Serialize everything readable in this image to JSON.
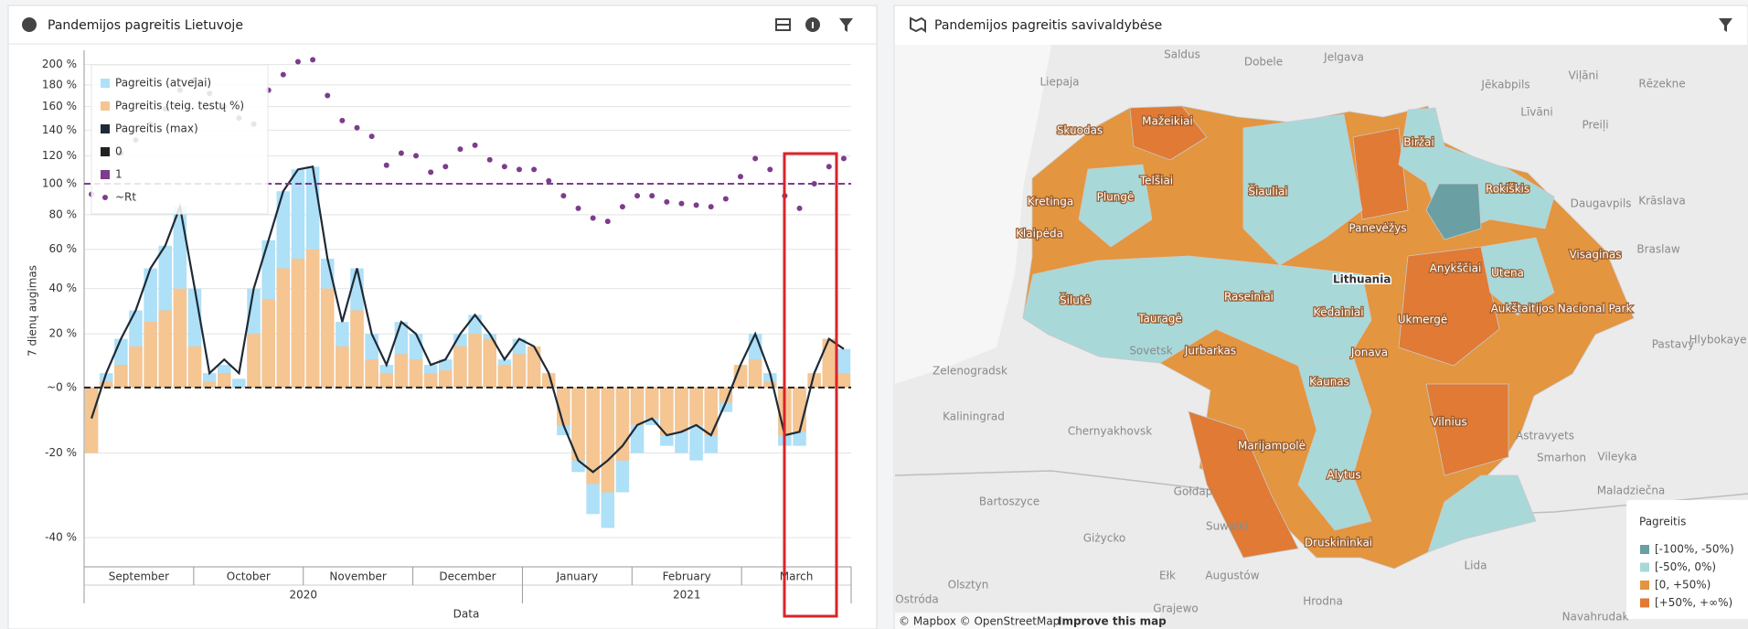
{
  "chart_data": {
    "type": "combo",
    "title": "Pandemijos pagreitis Lietuvoje",
    "y_label": "7 dienų augimas",
    "x_label": "Data",
    "months": [
      "September",
      "October",
      "November",
      "December",
      "January",
      "February",
      "March"
    ],
    "years": [
      "2020",
      "2021"
    ],
    "ylim": [
      -45,
      215
    ],
    "yscale": "log(1+x)",
    "grid": true,
    "yticks": [
      {
        "value": 200,
        "label": "200 %"
      },
      {
        "value": 180,
        "label": "180 %"
      },
      {
        "value": 160,
        "label": "160 %"
      },
      {
        "value": 140,
        "label": "140 %"
      },
      {
        "value": 120,
        "label": "120 %"
      },
      {
        "value": 100,
        "label": "100 %"
      },
      {
        "value": 80,
        "label": "80 %"
      },
      {
        "value": 60,
        "label": "60 %"
      },
      {
        "value": 40,
        "label": "40 %"
      },
      {
        "value": 20,
        "label": "20 %"
      },
      {
        "value": 0,
        "label": "~0 %"
      },
      {
        "value": -20,
        "label": "-20 %"
      },
      {
        "value": -40,
        "label": "-40 %"
      }
    ],
    "legend": "top-left",
    "series": [
      {
        "name": "Pagreitis (atvejai)",
        "type": "bar",
        "color": "#aee0f7",
        "values": [
          -10,
          5,
          18,
          30,
          50,
          62,
          85,
          40,
          5,
          8,
          3,
          40,
          65,
          95,
          110,
          112,
          55,
          25,
          50,
          20,
          8,
          25,
          20,
          8,
          10,
          20,
          28,
          20,
          10,
          18,
          12,
          3,
          -15,
          -25,
          -35,
          -38,
          -30,
          -20,
          -12,
          -18,
          -20,
          -22,
          -20,
          -8,
          5,
          20,
          5,
          -18,
          -18,
          3,
          15,
          14
        ]
      },
      {
        "name": "Pagreitis (teig. testų %)",
        "type": "bar",
        "color": "#f5c592",
        "values": [
          -20,
          2,
          8,
          15,
          25,
          30,
          40,
          15,
          2,
          5,
          0,
          20,
          35,
          50,
          55,
          60,
          40,
          15,
          30,
          10,
          5,
          12,
          10,
          5,
          6,
          15,
          20,
          18,
          8,
          12,
          15,
          5,
          -12,
          -22,
          -28,
          -30,
          -22,
          -12,
          -10,
          -15,
          -14,
          -12,
          -15,
          -5,
          8,
          10,
          2,
          -15,
          -14,
          5,
          18,
          5
        ]
      },
      {
        "name": "Pagreitis (max)",
        "type": "line",
        "color": "#1f2a36",
        "values": [
          -10,
          5,
          18,
          30,
          50,
          62,
          85,
          40,
          5,
          10,
          5,
          40,
          65,
          95,
          110,
          112,
          55,
          25,
          50,
          20,
          8,
          25,
          20,
          8,
          10,
          20,
          28,
          20,
          10,
          18,
          15,
          5,
          -12,
          -22,
          -25,
          -22,
          -18,
          -12,
          -10,
          -15,
          -14,
          -12,
          -15,
          -5,
          8,
          20,
          5,
          -15,
          -14,
          5,
          18,
          14
        ]
      },
      {
        "name": "0",
        "type": "hline",
        "color": "#222222",
        "value": 0
      },
      {
        "name": "1",
        "type": "hline",
        "color": "#7d3c8c",
        "value": 100
      },
      {
        "name": "~Rt",
        "type": "scatter",
        "color": "#7d3c8c",
        "values": [
          93,
          108,
          122,
          132,
          145,
          158,
          175,
          185,
          172,
          160,
          150,
          145,
          175,
          190,
          203,
          205,
          170,
          148,
          142,
          135,
          113,
          122,
          120,
          108,
          112,
          125,
          128,
          117,
          112,
          110,
          110,
          102,
          92,
          84,
          78,
          76,
          85,
          92,
          92,
          88,
          87,
          86,
          85,
          90,
          105,
          118,
          110,
          92,
          84,
          100,
          112,
          118
        ]
      }
    ]
  },
  "map": {
    "title": "Pandemijos pagreitis savivaldybėse",
    "country_label": "Lithuania",
    "places": [
      "Liepaja",
      "Saldus",
      "Dobele",
      "Jelgava",
      "Jēkabpils",
      "Viļāni",
      "Rēzekne",
      "Līvāni",
      "Preiļi",
      "Daugavpils",
      "Krāslava",
      "Braslaw",
      "Pastavy",
      "Hlybokaye",
      "Astravyets",
      "Smarhon",
      "Vileyka",
      "Maladziečna",
      "Lida",
      "Hrodna",
      "Navahrudak",
      "Kaliningrad",
      "Chernyakhovsk",
      "Zelenogradsk",
      "Sovetsk",
      "Gołdap",
      "Bartoszyce",
      "Suwałki",
      "Giżycko",
      "Ełk",
      "Augustów",
      "Olsztyn",
      "Grajewo",
      "Ostróda"
    ],
    "municipalities": [
      "Skuodas",
      "Mažeikiai",
      "Telšiai",
      "Plungė",
      "Kretinga",
      "Klaipėda",
      "Šiauliai",
      "Biržai",
      "Rokiškis",
      "Panevėžys",
      "Anykščiai",
      "Utena",
      "Visaginas",
      "Raseiniai",
      "Kėdainiai",
      "Tauragė",
      "Šilutė",
      "Jurbarkas",
      "Jonava",
      "Ukmergė",
      "Aukštaitijos Nacional Park",
      "Kaunas",
      "Vilnius",
      "Marijampolė",
      "Alytus",
      "Druskininkai"
    ],
    "legend": {
      "title": "Pagreitis",
      "items": [
        {
          "label": "[-100%, -50%)",
          "color": "#6a9fa3"
        },
        {
          "label": "[-50%, 0%)",
          "color": "#a9d8d9"
        },
        {
          "label": "[0, +50%)",
          "color": "#e3953f"
        },
        {
          "label": "[+50%, +∞%)",
          "color": "#e07a35"
        }
      ]
    },
    "attribution": "© Mapbox © OpenStreetMap",
    "improve": "Improve this map"
  }
}
